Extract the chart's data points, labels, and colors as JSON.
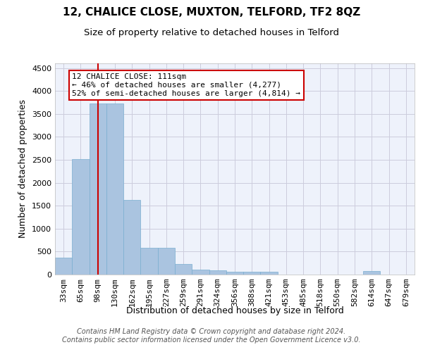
{
  "title": "12, CHALICE CLOSE, MUXTON, TELFORD, TF2 8QZ",
  "subtitle": "Size of property relative to detached houses in Telford",
  "xlabel": "Distribution of detached houses by size in Telford",
  "ylabel": "Number of detached properties",
  "footer_line1": "Contains HM Land Registry data © Crown copyright and database right 2024.",
  "footer_line2": "Contains public sector information licensed under the Open Government Licence v3.0.",
  "categories": [
    "33sqm",
    "65sqm",
    "98sqm",
    "130sqm",
    "162sqm",
    "195sqm",
    "227sqm",
    "259sqm",
    "291sqm",
    "324sqm",
    "356sqm",
    "388sqm",
    "421sqm",
    "453sqm",
    "485sqm",
    "518sqm",
    "550sqm",
    "582sqm",
    "614sqm",
    "647sqm",
    "679sqm"
  ],
  "values": [
    370,
    2510,
    3720,
    3720,
    1620,
    580,
    580,
    230,
    110,
    90,
    60,
    55,
    55,
    0,
    0,
    0,
    0,
    0,
    75,
    0,
    0
  ],
  "bar_color": "#aac4e0",
  "bar_edge_color": "#7aaed0",
  "grid_color": "#ccccdd",
  "property_line_x": 2.5,
  "annotation_text": "12 CHALICE CLOSE: 111sqm\n← 46% of detached houses are smaller (4,277)\n52% of semi-detached houses are larger (4,814) →",
  "annotation_box_color": "#ffffff",
  "annotation_box_edge_color": "#cc0000",
  "ylim": [
    0,
    4600
  ],
  "yticks": [
    0,
    500,
    1000,
    1500,
    2000,
    2500,
    3000,
    3500,
    4000,
    4500
  ],
  "title_fontsize": 11,
  "subtitle_fontsize": 9.5,
  "xlabel_fontsize": 9,
  "ylabel_fontsize": 9,
  "tick_fontsize": 8,
  "annotation_fontsize": 8,
  "footer_fontsize": 7,
  "bg_color": "#eef2fb"
}
